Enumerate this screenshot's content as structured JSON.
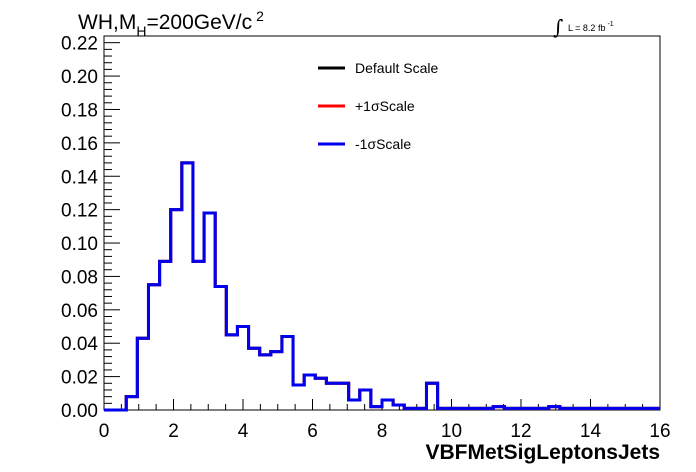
{
  "chart_data": {
    "type": "line",
    "title_parts": {
      "base": "WH,M",
      "sub": "H",
      "mid": "=200GeV/c",
      "sup": "2"
    },
    "lumi_parts": {
      "integral": "∫",
      "text": "L = 8.2 fb",
      "sup": "-1"
    },
    "xlabel": "VBFMetSigLeptonsJets",
    "ylabel": "",
    "xlim": [
      0,
      16
    ],
    "ylim": [
      0,
      0.224
    ],
    "x_ticks": [
      0,
      2,
      4,
      6,
      8,
      10,
      12,
      14,
      16
    ],
    "x_tick_labels": [
      "0",
      "2",
      "4",
      "6",
      "8",
      "10",
      "12",
      "14",
      "16"
    ],
    "y_ticks": [
      0,
      0.02,
      0.04,
      0.06,
      0.08,
      0.1,
      0.12,
      0.14,
      0.16,
      0.18,
      0.2,
      0.22
    ],
    "y_tick_labels": [
      "0.00",
      "0.02",
      "0.04",
      "0.06",
      "0.08",
      "0.10",
      "0.12",
      "0.14",
      "0.16",
      "0.18",
      "0.20",
      "0.22"
    ],
    "grid": false,
    "legend_position": "top-center",
    "bin_width": 0.32,
    "bin_edges_start": 0,
    "series": [
      {
        "name": "Default Scale",
        "color": "#000000",
        "values": [
          0,
          0,
          0.008,
          0.043,
          0.075,
          0.089,
          0.12,
          0.148,
          0.089,
          0.118,
          0.074,
          0.045,
          0.05,
          0.037,
          0.033,
          0.035,
          0.044,
          0.015,
          0.021,
          0.019,
          0.016,
          0.016,
          0.006,
          0.012,
          0.002,
          0.006,
          0.003,
          0.001,
          0.001,
          0.016,
          0.001,
          0.001,
          0.001,
          0.001,
          0.001,
          0.002,
          0.001,
          0.001,
          0.001,
          0.001,
          0.002,
          0.001,
          0.001,
          0.001,
          0.001,
          0.001,
          0.001,
          0.001,
          0.001,
          0.001
        ]
      },
      {
        "name": "+1σScale",
        "color": "#ff0000",
        "values": [
          0,
          0,
          0.008,
          0.043,
          0.075,
          0.089,
          0.12,
          0.148,
          0.089,
          0.118,
          0.074,
          0.045,
          0.05,
          0.037,
          0.033,
          0.035,
          0.044,
          0.015,
          0.021,
          0.019,
          0.016,
          0.016,
          0.006,
          0.012,
          0.002,
          0.006,
          0.003,
          0.001,
          0.001,
          0.016,
          0.001,
          0.001,
          0.001,
          0.001,
          0.001,
          0.002,
          0.001,
          0.001,
          0.001,
          0.001,
          0.002,
          0.001,
          0.001,
          0.001,
          0.001,
          0.001,
          0.001,
          0.001,
          0.001,
          0.001
        ]
      },
      {
        "name": "-1σScale",
        "color": "#0000ee",
        "values": [
          0,
          0,
          0.008,
          0.043,
          0.075,
          0.089,
          0.12,
          0.148,
          0.089,
          0.118,
          0.074,
          0.045,
          0.05,
          0.037,
          0.033,
          0.035,
          0.044,
          0.015,
          0.021,
          0.019,
          0.016,
          0.016,
          0.006,
          0.012,
          0.002,
          0.006,
          0.003,
          0.001,
          0.001,
          0.016,
          0.001,
          0.001,
          0.001,
          0.001,
          0.001,
          0.002,
          0.001,
          0.001,
          0.001,
          0.001,
          0.002,
          0.001,
          0.001,
          0.001,
          0.001,
          0.001,
          0.001,
          0.001,
          0.001,
          0.001
        ]
      }
    ]
  }
}
